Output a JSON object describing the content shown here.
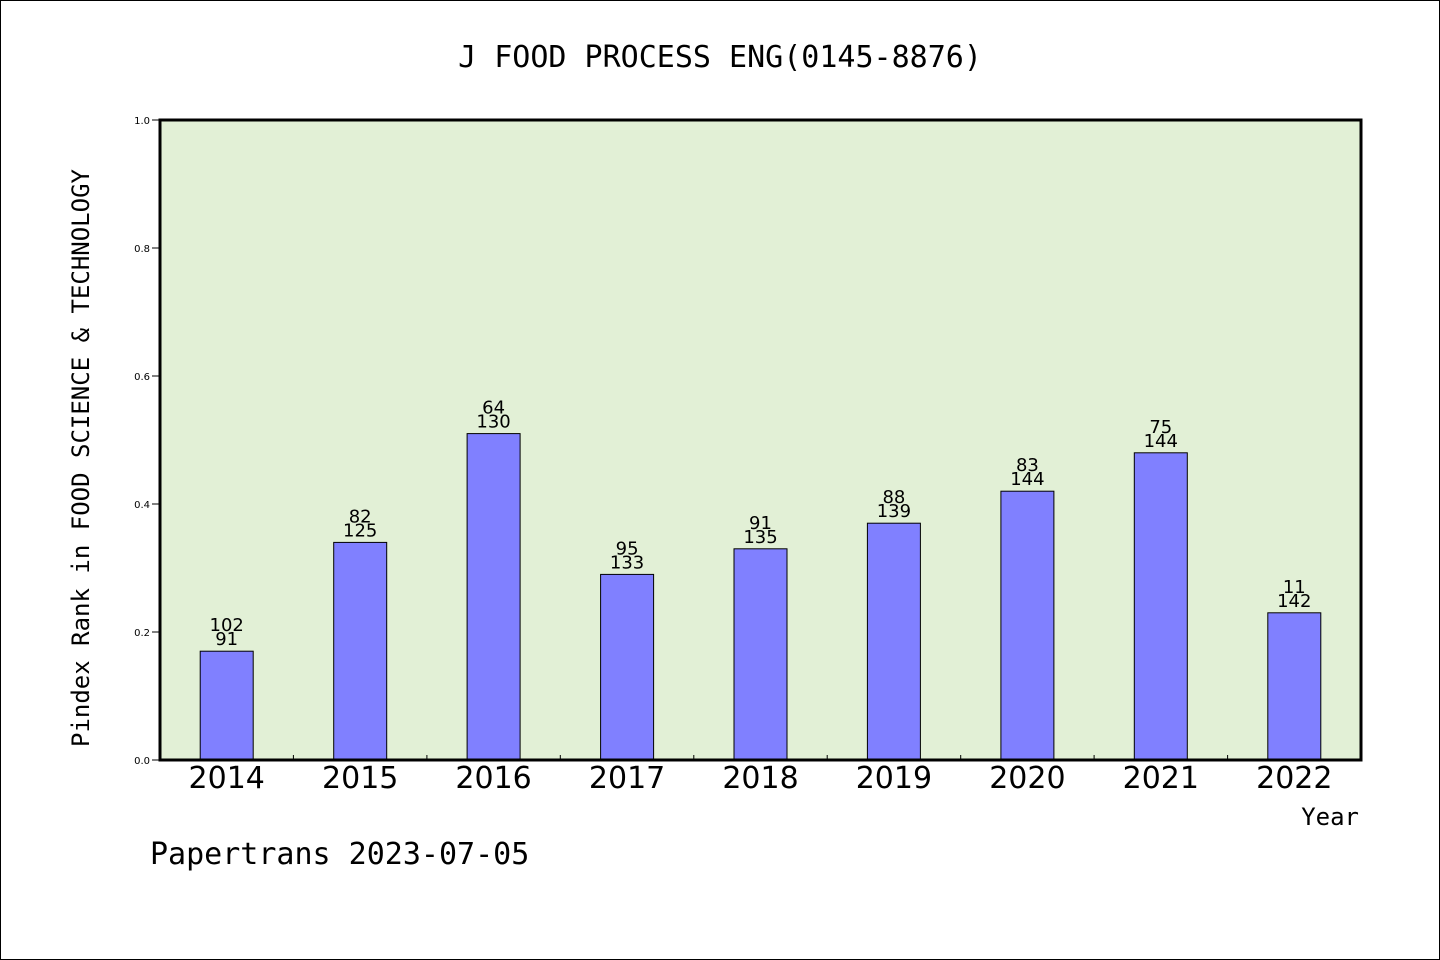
{
  "chart_data": {
    "type": "bar",
    "title": "J FOOD PROCESS ENG(0145-8876)",
    "ylabel": "Pindex Rank in FOOD SCIENCE & TECHNOLOGY",
    "xlabel": "Year",
    "categories": [
      "2014",
      "2015",
      "2016",
      "2017",
      "2018",
      "2019",
      "2020",
      "2021",
      "2022"
    ],
    "values": [
      0.17,
      0.34,
      0.51,
      0.29,
      0.33,
      0.37,
      0.42,
      0.48,
      0.23
    ],
    "labels_top": [
      "102",
      "82",
      "64",
      "95",
      "91",
      "88",
      "83",
      "75",
      "11"
    ],
    "labels_bottom": [
      "91",
      "125",
      "130",
      "133",
      "135",
      "139",
      "144",
      "144",
      "142"
    ],
    "ylim": [
      0,
      1.0
    ],
    "yticks": [
      "0.0",
      "0.2",
      "0.4",
      "0.6",
      "0.8",
      "1.0"
    ],
    "grid": false,
    "colors": {
      "bar": "#8080ff",
      "plot_bg": "#e2f0d6",
      "bar_edge": "#000000"
    }
  },
  "footer": "Papertrans 2023-07-05"
}
